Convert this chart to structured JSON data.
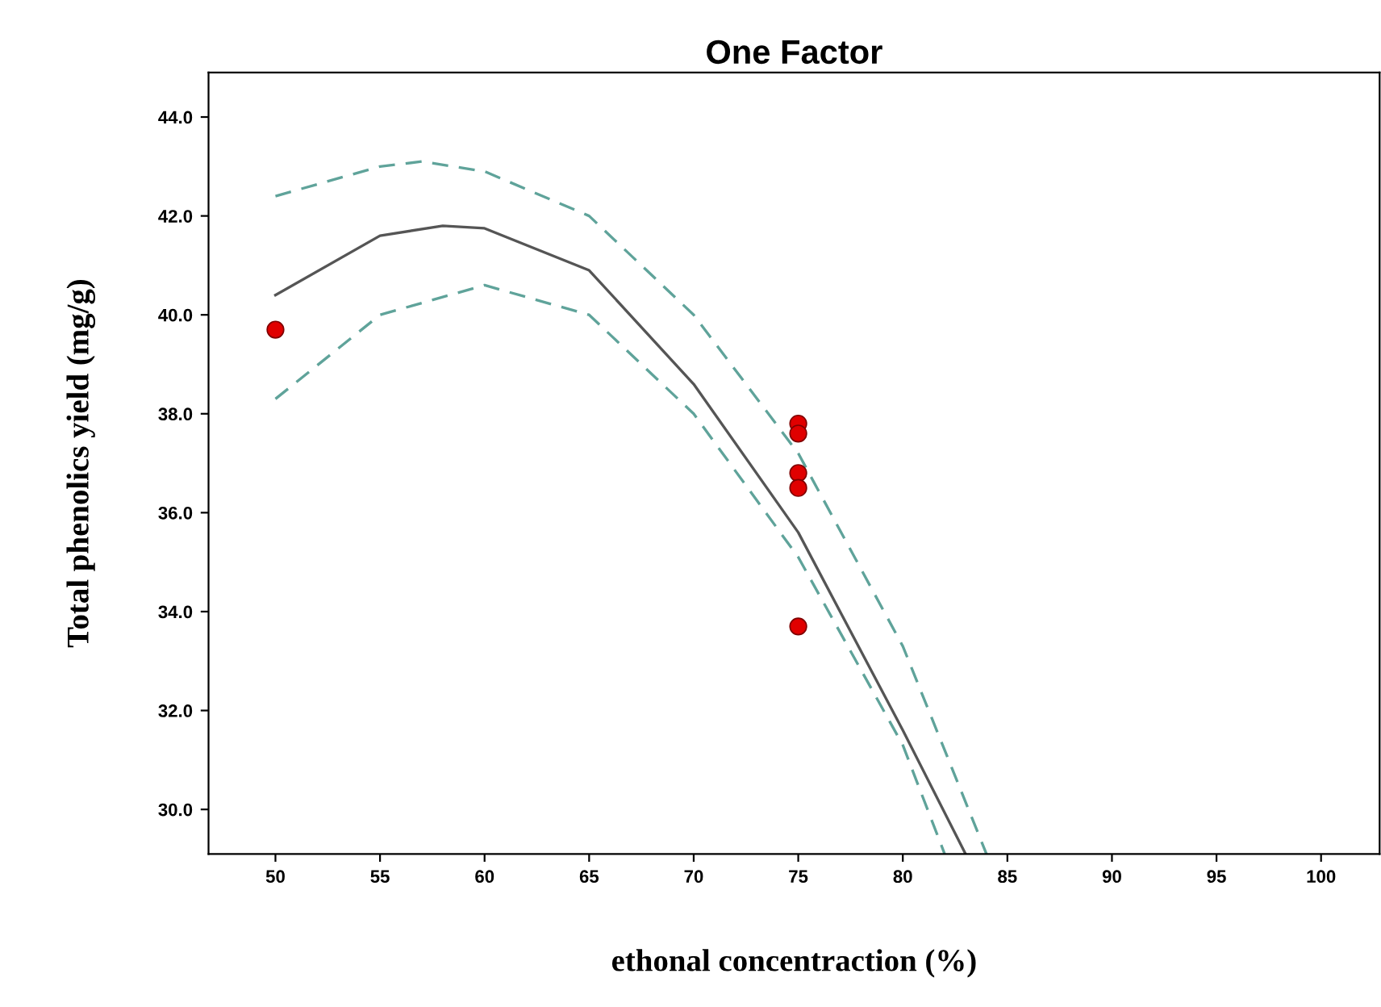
{
  "chart_data": {
    "type": "scatter",
    "title": "One Factor",
    "xlabel": "ethonal concentraction (%)",
    "ylabel": "Total phenolics yield (mg/g)",
    "xlim": [
      46.8,
      102.8
    ],
    "xticks": [
      50,
      55,
      60,
      65,
      70,
      75,
      80,
      85,
      90,
      95,
      100
    ],
    "ylim": [
      29.1,
      44.9
    ],
    "yticks": [
      {
        "value": 30,
        "label": "30.0"
      },
      {
        "value": 32,
        "label": "32.0"
      },
      {
        "value": 34,
        "label": "34.0"
      },
      {
        "value": 36,
        "label": "36.0"
      },
      {
        "value": 38,
        "label": "38.0"
      },
      {
        "value": 40,
        "label": "40.0"
      },
      {
        "value": 42,
        "label": "42.0"
      },
      {
        "value": 44,
        "label": "44.0"
      }
    ],
    "grid": false,
    "legend": false,
    "series": [
      {
        "color": "#e00000",
        "marker": "circle",
        "x": [
          50,
          75,
          75,
          75,
          75,
          75
        ],
        "values": [
          39.7,
          37.8,
          37.6,
          36.8,
          36.5,
          33.7
        ]
      },
      {
        "type": "line",
        "color": "#555555",
        "line_style": "solid",
        "marker": "none",
        "x": [
          50,
          55,
          58,
          60,
          65,
          70,
          75,
          80,
          83
        ],
        "values": [
          40.4,
          41.6,
          41.8,
          41.75,
          40.9,
          38.6,
          35.6,
          31.6,
          29.1
        ]
      },
      {
        "type": "line",
        "color": "#5fa39a",
        "line_style": "dashed",
        "marker": "none",
        "x": [
          50,
          55,
          57,
          60,
          65,
          70,
          75,
          80,
          84
        ],
        "values": [
          42.4,
          43.0,
          43.1,
          42.9,
          42.0,
          40.0,
          37.2,
          33.3,
          29.1
        ]
      },
      {
        "type": "line",
        "color": "#5fa39a",
        "line_style": "dashed",
        "marker": "none",
        "x": [
          50,
          55,
          60,
          65,
          70,
          75,
          80,
          82
        ],
        "values": [
          38.3,
          40.0,
          40.6,
          40.0,
          38.0,
          35.1,
          31.3,
          29.1
        ]
      }
    ]
  }
}
